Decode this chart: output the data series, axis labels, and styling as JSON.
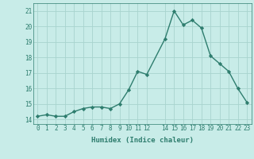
{
  "x": [
    0,
    1,
    2,
    3,
    4,
    5,
    6,
    7,
    8,
    9,
    10,
    11,
    12,
    14,
    15,
    16,
    17,
    18,
    19,
    20,
    21,
    22,
    23
  ],
  "y": [
    14.2,
    14.3,
    14.2,
    14.2,
    14.5,
    14.7,
    14.8,
    14.8,
    14.7,
    15.0,
    15.9,
    17.1,
    16.9,
    19.2,
    21.0,
    20.1,
    20.4,
    19.9,
    18.1,
    17.6,
    17.1,
    16.0,
    15.1
  ],
  "color": "#2e7d6e",
  "bg_color": "#c8ece8",
  "grid_color": "#a8d4ce",
  "xlabel": "Humidex (Indice chaleur)",
  "ylabel_ticks": [
    14,
    15,
    16,
    17,
    18,
    19,
    20,
    21
  ],
  "xlim": [
    -0.5,
    23.5
  ],
  "ylim": [
    13.7,
    21.5
  ],
  "xtick_positions": [
    0,
    1,
    2,
    3,
    4,
    5,
    6,
    7,
    8,
    9,
    10,
    11,
    12,
    14,
    15,
    16,
    17,
    18,
    19,
    20,
    21,
    22,
    23
  ],
  "xtick_labels": [
    "0",
    "1",
    "2",
    "3",
    "4",
    "5",
    "6",
    "7",
    "8",
    "9",
    "10",
    "11",
    "12",
    "14",
    "15",
    "16",
    "17",
    "18",
    "19",
    "20",
    "21",
    "22",
    "23"
  ],
  "marker": "D",
  "markersize": 2.2,
  "linewidth": 1.0,
  "tick_fontsize": 5.5,
  "xlabel_fontsize": 6.5
}
